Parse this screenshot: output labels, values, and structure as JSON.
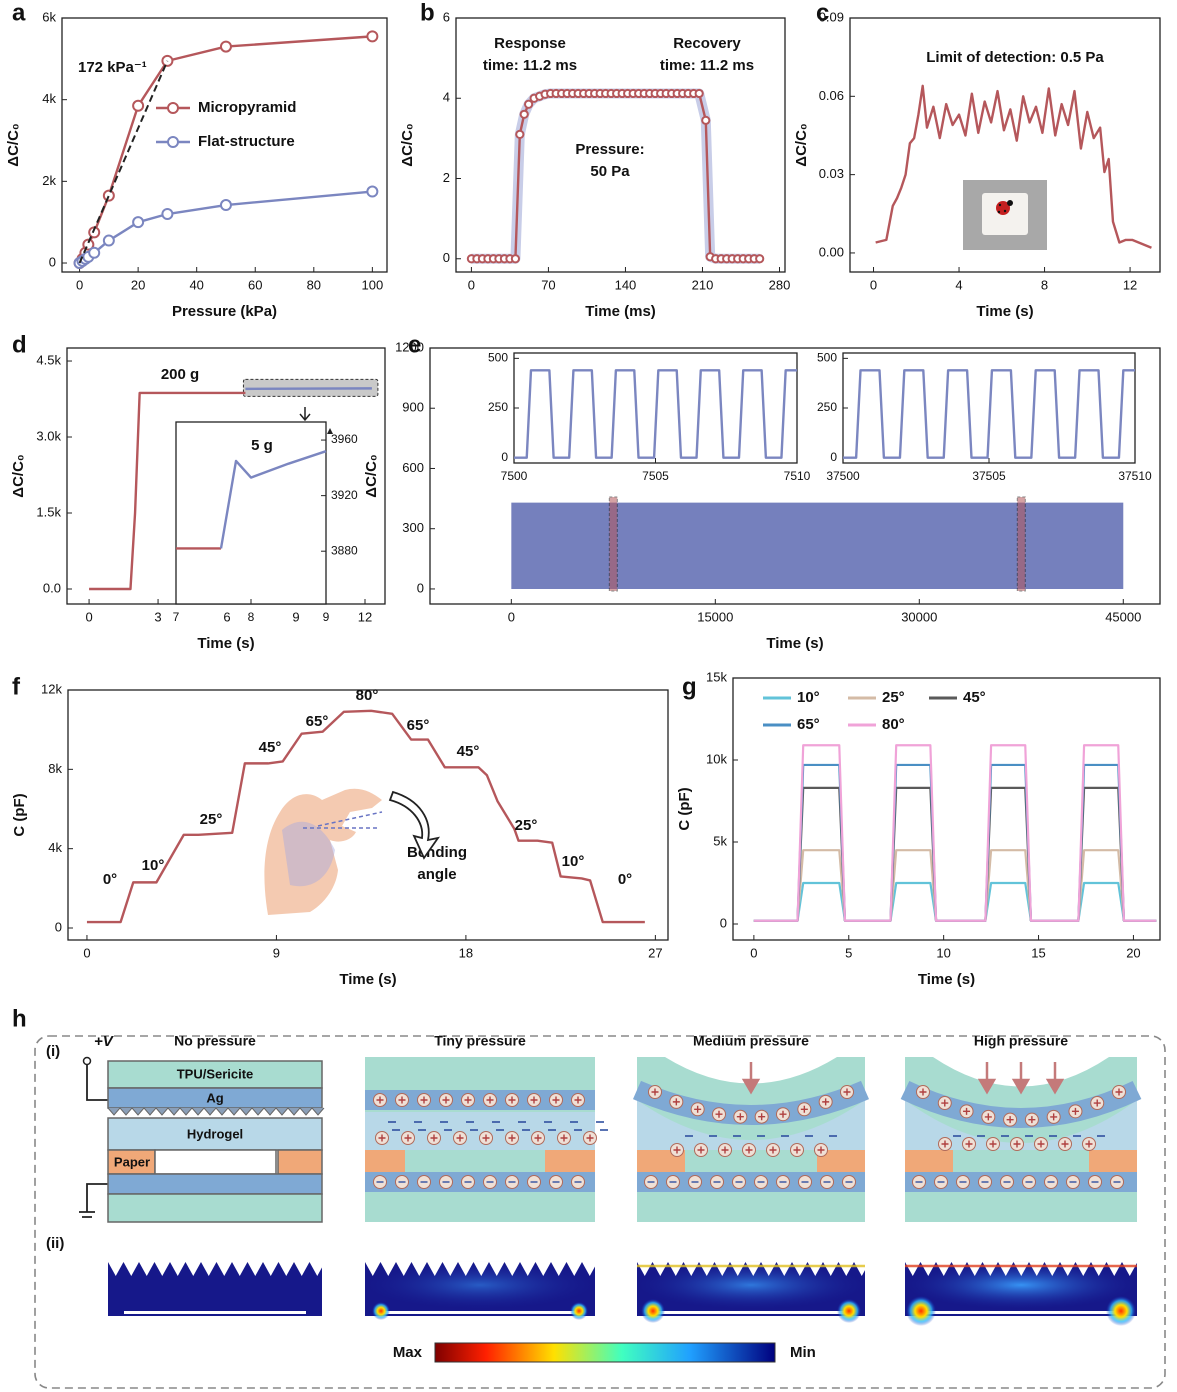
{
  "chart_data": [
    {
      "panel": "a",
      "type": "line",
      "marker": "circle",
      "xlabel": "Pressure (kPa)",
      "ylabel": "ΔC/C₀",
      "xlim": [
        -6,
        105
      ],
      "ylim": [
        -220,
        6000
      ],
      "xticks": [
        0,
        20,
        40,
        60,
        80,
        100
      ],
      "yticks": [
        0,
        {
          "value": 2000,
          "label": "2k"
        },
        {
          "value": 4000,
          "label": "4k"
        },
        {
          "value": 6000,
          "label": "6k"
        }
      ],
      "x": [
        0,
        1,
        2,
        3,
        5,
        10,
        20,
        30,
        50,
        100
      ],
      "series": [
        {
          "name": "Micropyramid",
          "color": "#b5575b",
          "values": [
            0,
            100,
            250,
            450,
            750,
            1650,
            3850,
            4950,
            5300,
            5550
          ]
        },
        {
          "name": "Flat-structure",
          "color": "#7b86c0",
          "values": [
            0,
            50,
            100,
            150,
            250,
            550,
            1000,
            1200,
            1420,
            1750
          ]
        }
      ],
      "annotations": [
        "172 kPa⁻¹"
      ]
    },
    {
      "panel": "b",
      "type": "line",
      "marker": "circle",
      "xlabel": "Time (ms)",
      "ylabel": "ΔC/C₀",
      "xlim": [
        -14,
        285
      ],
      "ylim": [
        -0.33,
        6
      ],
      "xticks": [
        0,
        70,
        140,
        210,
        280
      ],
      "yticks": [
        0,
        2,
        4,
        6
      ],
      "x": [
        0,
        5,
        10,
        15,
        20,
        25,
        30,
        35,
        40,
        44,
        48,
        52,
        57,
        62,
        67,
        72,
        77,
        82,
        87,
        92,
        97,
        102,
        107,
        112,
        117,
        122,
        127,
        132,
        137,
        142,
        147,
        152,
        157,
        162,
        167,
        172,
        177,
        182,
        187,
        192,
        197,
        202,
        207,
        213,
        217,
        222,
        227,
        232,
        237,
        242,
        247,
        252,
        257,
        262
      ],
      "series": [
        {
          "color": "#b5575b",
          "values": [
            0,
            0,
            0,
            0,
            0,
            0,
            0,
            0,
            0,
            3.1,
            3.6,
            3.85,
            4.0,
            4.05,
            4.1,
            4.12,
            4.12,
            4.12,
            4.12,
            4.12,
            4.12,
            4.12,
            4.12,
            4.12,
            4.12,
            4.12,
            4.12,
            4.12,
            4.12,
            4.12,
            4.12,
            4.12,
            4.12,
            4.12,
            4.12,
            4.12,
            4.12,
            4.12,
            4.12,
            4.12,
            4.12,
            4.12,
            4.12,
            3.45,
            0.05,
            0,
            0,
            0,
            0,
            0,
            0,
            0,
            0,
            0
          ]
        }
      ],
      "annotations": [
        "Response",
        "time: 11.2 ms",
        "Recovery",
        "time: 11.2 ms",
        "Pressure:",
        "50 Pa"
      ]
    },
    {
      "panel": "c",
      "type": "line",
      "xlabel": "Time (s)",
      "ylabel": "ΔC/C₀",
      "xlim": [
        -1.1,
        13.4
      ],
      "ylim": [
        -0.0073,
        0.09
      ],
      "xticks": [
        0,
        4,
        8,
        12
      ],
      "yticks": [
        {
          "value": 0,
          "label": "0.00"
        },
        0.03,
        0.06,
        0.09
      ],
      "x": [
        0.1,
        0.6,
        0.9,
        1.1,
        1.3,
        1.5,
        1.7,
        1.9,
        2.1,
        2.3,
        2.5,
        2.8,
        3.1,
        3.4,
        3.7,
        4.0,
        4.3,
        4.6,
        4.9,
        5.2,
        5.5,
        5.8,
        6.1,
        6.4,
        6.7,
        7.0,
        7.3,
        7.6,
        7.9,
        8.2,
        8.5,
        8.8,
        9.1,
        9.4,
        9.7,
        10.0,
        10.3,
        10.6,
        10.8,
        11.0,
        11.2,
        11.5,
        11.8,
        12.1,
        12.4,
        12.7,
        13.0
      ],
      "series": [
        {
          "color": "#b5575b",
          "values": [
            0.004,
            0.005,
            0.018,
            0.021,
            0.025,
            0.03,
            0.042,
            0.044,
            0.053,
            0.064,
            0.048,
            0.056,
            0.044,
            0.057,
            0.049,
            0.053,
            0.045,
            0.061,
            0.046,
            0.058,
            0.05,
            0.062,
            0.047,
            0.055,
            0.043,
            0.06,
            0.05,
            0.056,
            0.046,
            0.063,
            0.045,
            0.057,
            0.049,
            0.062,
            0.04,
            0.054,
            0.044,
            0.048,
            0.031,
            0.036,
            0.012,
            0.004,
            0.005,
            0.005,
            0.004,
            0.003,
            0.002
          ]
        }
      ],
      "annotations": [
        "Limit of detection: 0.5 Pa"
      ]
    },
    {
      "panel": "d",
      "type": "line",
      "xlabel": "Time (s)",
      "ylabel": "ΔC/C₀",
      "xlim": [
        -0.96,
        12.87
      ],
      "ylim": [
        -296,
        4757
      ],
      "xticks": [
        0,
        3,
        6,
        9,
        12
      ],
      "yticks": [
        {
          "value": 0,
          "label": "0.0"
        },
        {
          "value": 1500,
          "label": "1.5k"
        },
        {
          "value": 3000,
          "label": "3.0k"
        },
        {
          "value": 4500,
          "label": "4.5k"
        }
      ],
      "series": [
        {
          "color": "#b5575b",
          "x": [
            0,
            1.8,
            2.0,
            2.2,
            6.8
          ],
          "values": [
            0,
            0,
            1500,
            3870,
            3870
          ]
        },
        {
          "color": "#7b86c0",
          "x": [
            6.8,
            12.3
          ],
          "values": [
            3950,
            3960
          ]
        }
      ],
      "annotations": [
        "200 g"
      ]
    },
    {
      "type": "line",
      "y_axis_side": "right",
      "xlim": [
        7,
        9
      ],
      "ylim": [
        3842,
        3973
      ],
      "xticks": [
        7,
        8,
        9
      ],
      "yticks": [
        3880,
        3920,
        3960
      ],
      "series": [
        {
          "color": "#b5575b",
          "x": [
            7,
            7.6
          ],
          "values": [
            3882,
            3882
          ]
        },
        {
          "color": "#7b86c0",
          "x": [
            7.6,
            7.8,
            8.0,
            8.5,
            9.0
          ],
          "values": [
            3882,
            3945,
            3933,
            3943,
            3952
          ]
        }
      ],
      "annotations": [
        "5 g"
      ]
    },
    {
      "panel": "e",
      "type": "area",
      "xlabel": "Time (s)",
      "ylabel": "ΔC/C₀",
      "xlim": [
        -5980,
        47700
      ],
      "ylim": [
        -75,
        1200
      ],
      "xticks": [
        0,
        15000,
        30000,
        45000
      ],
      "yticks": [
        0,
        300,
        600,
        900,
        1200
      ],
      "x": [
        0,
        45000
      ],
      "series": [
        {
          "color": "#7580bd",
          "values": [
            430,
            430
          ]
        }
      ]
    },
    {
      "type": "line",
      "xlim": [
        7500,
        7510
      ],
      "ylim": [
        -27,
        527
      ],
      "xticks": [
        7500,
        7505,
        7510
      ],
      "yticks": [
        0,
        250,
        500
      ],
      "x": [
        7500,
        7500.45,
        7500.6,
        7501.25,
        7501.4,
        7501.95,
        7502.1,
        7502.75,
        7502.9,
        7503.45,
        7503.6,
        7504.25,
        7504.4,
        7504.95,
        7505.1,
        7505.75,
        7505.9,
        7506.45,
        7506.6,
        7507.25,
        7507.4,
        7507.95,
        7508.1,
        7508.75,
        7508.9,
        7509.45,
        7509.6,
        7510
      ],
      "series": [
        {
          "color": "#7b86c0",
          "values": [
            0,
            0,
            440,
            440,
            0,
            0,
            440,
            440,
            0,
            0,
            440,
            440,
            0,
            0,
            440,
            440,
            0,
            0,
            440,
            440,
            0,
            0,
            440,
            440,
            0,
            0,
            440,
            440
          ]
        }
      ]
    },
    {
      "type": "line",
      "xlim": [
        37500,
        37510
      ],
      "ylim": [
        -27,
        527
      ],
      "xticks": [
        37500,
        37505,
        37510
      ],
      "yticks": [
        0,
        250,
        500
      ],
      "x": [
        37500,
        37500.45,
        37500.6,
        37501.25,
        37501.4,
        37501.95,
        37502.1,
        37502.75,
        37502.9,
        37503.45,
        37503.6,
        37504.25,
        37504.4,
        37504.95,
        37505.1,
        37505.75,
        37505.9,
        37506.45,
        37506.6,
        37507.25,
        37507.4,
        37507.95,
        37508.1,
        37508.75,
        37508.9,
        37509.45,
        37509.6,
        37510
      ],
      "series": [
        {
          "color": "#7b86c0",
          "values": [
            0,
            0,
            440,
            440,
            0,
            0,
            440,
            440,
            0,
            0,
            440,
            440,
            0,
            0,
            440,
            440,
            0,
            0,
            440,
            440,
            0,
            0,
            440,
            440,
            0,
            0,
            440,
            440
          ]
        }
      ]
    },
    {
      "panel": "f",
      "type": "line",
      "xlabel": "Time (s)",
      "ylabel": "C (pF)",
      "xlim": [
        -0.9,
        27.6
      ],
      "ylim": [
        -605,
        12000
      ],
      "xticks": [
        0,
        9,
        18,
        27
      ],
      "yticks": [
        0,
        {
          "value": 4000,
          "label": "4k"
        },
        {
          "value": 8000,
          "label": "8k"
        },
        {
          "value": 12000,
          "label": "12k"
        }
      ],
      "x": [
        0,
        1.6,
        2.2,
        2.9,
        3.3,
        4.6,
        5.3,
        6.9,
        7.5,
        8.6,
        9.3,
        10.2,
        11.2,
        12.2,
        13.5,
        14.5,
        15.4,
        16.2,
        17.0,
        18.6,
        19.0,
        19.5,
        20.3,
        20.5,
        21.4,
        22.1,
        22.5,
        23.5,
        23.9,
        24.5,
        26.5
      ],
      "series": [
        {
          "color": "#b5575b",
          "values": [
            300,
            300,
            2300,
            2300,
            2300,
            4700,
            4700,
            4800,
            8300,
            8300,
            8400,
            9800,
            9900,
            10900,
            10950,
            10800,
            9500,
            9500,
            8100,
            8100,
            7700,
            6400,
            5000,
            4400,
            4400,
            4300,
            2600,
            2500,
            2400,
            300,
            300
          ]
        }
      ],
      "annotations": [
        "0°",
        "10°",
        "25°",
        "45°",
        "65°",
        "80°",
        "65°",
        "45°",
        "25°",
        "10°",
        "0°",
        "Bending",
        "angle"
      ]
    },
    {
      "panel": "g",
      "type": "line",
      "xlabel": "Time (s)",
      "ylabel": "C (pF)",
      "xlim": [
        -1.1,
        21.4
      ],
      "ylim": [
        -976,
        15000
      ],
      "xticks": [
        0,
        5,
        10,
        15,
        20
      ],
      "yticks": [
        0,
        {
          "value": 5000,
          "label": "5k"
        },
        {
          "value": 10000,
          "label": "10k"
        },
        {
          "value": 15000,
          "label": "15k"
        }
      ],
      "x": [
        0,
        2.3,
        2.6,
        4.5,
        4.8,
        7.2,
        7.5,
        9.3,
        9.6,
        12.2,
        12.5,
        14.3,
        14.6,
        17.1,
        17.4,
        19.2,
        19.5,
        21.2
      ],
      "series": [
        {
          "name": "10°",
          "color": "#62c3d9",
          "values": [
            200,
            200,
            2500,
            2500,
            200,
            200,
            2500,
            2500,
            200,
            200,
            2500,
            2500,
            200,
            200,
            2500,
            2500,
            200,
            200
          ]
        },
        {
          "name": "25°",
          "color": "#d4bba6",
          "values": [
            200,
            200,
            4500,
            4500,
            200,
            200,
            4500,
            4500,
            200,
            200,
            4500,
            4500,
            200,
            200,
            4500,
            4500,
            200,
            200
          ]
        },
        {
          "name": "45°",
          "color": "#5a5a5a",
          "values": [
            200,
            200,
            8300,
            8300,
            200,
            200,
            8300,
            8300,
            200,
            200,
            8300,
            8300,
            200,
            200,
            8300,
            8300,
            200,
            200
          ]
        },
        {
          "name": "65°",
          "color": "#4a8fc4",
          "values": [
            200,
            200,
            9700,
            9700,
            200,
            200,
            9700,
            9700,
            200,
            200,
            9700,
            9700,
            200,
            200,
            9700,
            9700,
            200,
            200
          ]
        },
        {
          "name": "80°",
          "color": "#f0a3d8",
          "values": [
            200,
            200,
            10900,
            10900,
            200,
            200,
            10900,
            10900,
            200,
            200,
            10900,
            10900,
            200,
            200,
            10900,
            10900,
            200,
            200
          ]
        }
      ]
    }
  ],
  "schematic": {
    "panel": "h",
    "rows": [
      "(i)",
      "(ii)"
    ],
    "supply": "+V",
    "states": [
      "No pressure",
      "Tiny pressure",
      "Medium pressure",
      "High pressure"
    ],
    "layers": [
      "TPU/Sericite",
      "Ag",
      "Hydrogel",
      "Paper"
    ],
    "colorbar": [
      "Max",
      "Min"
    ]
  }
}
